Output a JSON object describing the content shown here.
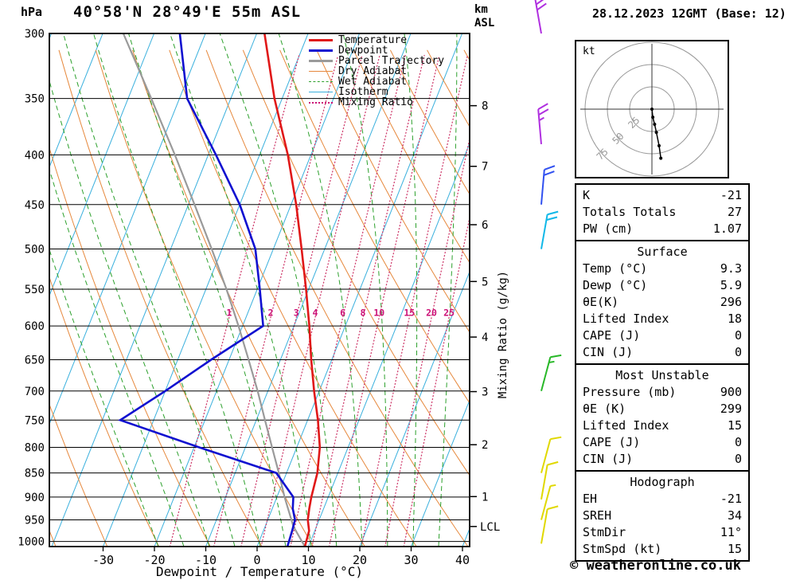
{
  "header": {
    "pressure_unit": "hPa",
    "title": "40°58'N 28°49'E 55m ASL",
    "date": "28.12.2023 12GMT (Base: 12)",
    "altitude_header_line1": "km",
    "altitude_header_line2": "ASL"
  },
  "axes": {
    "pressure_ticks": [
      300,
      350,
      400,
      450,
      500,
      550,
      600,
      650,
      700,
      750,
      800,
      850,
      900,
      950,
      1000
    ],
    "temp_ticks": [
      -30,
      -20,
      -10,
      0,
      10,
      20,
      30,
      40
    ],
    "xlabel": "Dewpoint / Temperature (°C)",
    "right_axis_label": "Mixing Ratio (g/kg)",
    "km_ticks": [
      {
        "km": 1,
        "p": 899
      },
      {
        "km": 2,
        "p": 795
      },
      {
        "km": 3,
        "p": 701
      },
      {
        "km": 4,
        "p": 616
      },
      {
        "km": 5,
        "p": 540
      },
      {
        "km": 6,
        "p": 472
      },
      {
        "km": 7,
        "p": 411
      },
      {
        "km": 8,
        "p": 356
      }
    ],
    "lcl": {
      "label": "LCL",
      "p": 965
    }
  },
  "legend": [
    {
      "label": "Temperature",
      "color": "#e01818",
      "style": "solid",
      "weight": 3
    },
    {
      "label": "Dewpoint",
      "color": "#1010d0",
      "style": "solid",
      "weight": 3
    },
    {
      "label": "Parcel Trajectory",
      "color": "#9a9a9a",
      "style": "solid",
      "weight": 3
    },
    {
      "label": "Dry Adiabat",
      "color": "#e6883c",
      "style": "solid",
      "weight": 1
    },
    {
      "label": "Wet Adiabat",
      "color": "#2ca02c",
      "style": "dashed",
      "weight": 1
    },
    {
      "label": "Isotherm",
      "color": "#3ab0dd",
      "style": "solid",
      "weight": 1
    },
    {
      "label": "Mixing Ratio",
      "color": "#cc1177",
      "style": "dotted",
      "weight": 2
    }
  ],
  "chart_data": {
    "type": "skewt-log-p",
    "pressure_range_hpa": [
      300,
      1012
    ],
    "temperature_axis_c": [
      -40,
      41
    ],
    "isotherms": {
      "min": -100,
      "max": 40,
      "step": 10
    },
    "dry_adiabats_theta_c": {
      "min": -40,
      "max": 160,
      "step": 10
    },
    "wet_adiabats_thetaw_c": {
      "min": -20,
      "max": 35,
      "step": 5
    },
    "mixing_ratio_lines_gkg": [
      1,
      2,
      3,
      4,
      6,
      8,
      10,
      15,
      20,
      25
    ],
    "temperature_profile_c_by_hpa": [
      [
        1012,
        9.3
      ],
      [
        975,
        8.9
      ],
      [
        950,
        7.8
      ],
      [
        925,
        7.2
      ],
      [
        900,
        6.7
      ],
      [
        850,
        6.0
      ],
      [
        800,
        4.5
      ],
      [
        750,
        2.0
      ],
      [
        700,
        -1.0
      ],
      [
        650,
        -4.0
      ],
      [
        600,
        -7.0
      ],
      [
        550,
        -10.5
      ],
      [
        500,
        -14.5
      ],
      [
        450,
        -19.0
      ],
      [
        400,
        -24.5
      ],
      [
        350,
        -31.5
      ],
      [
        300,
        -38.5
      ]
    ],
    "dewpoint_profile_c_by_hpa": [
      [
        1012,
        5.9
      ],
      [
        975,
        5.6
      ],
      [
        950,
        5.3
      ],
      [
        925,
        4.0
      ],
      [
        900,
        3.2
      ],
      [
        850,
        -2.0
      ],
      [
        800,
        -19.0
      ],
      [
        750,
        -36.5
      ],
      [
        700,
        -30.0
      ],
      [
        650,
        -23.5
      ],
      [
        600,
        -16.0
      ],
      [
        550,
        -19.5
      ],
      [
        500,
        -23.5
      ],
      [
        450,
        -30.0
      ],
      [
        400,
        -38.5
      ],
      [
        350,
        -48.5
      ],
      [
        300,
        -55.0
      ]
    ],
    "parcel_profile_c_by_hpa": [
      [
        1012,
        9.3
      ],
      [
        965,
        5.5
      ],
      [
        900,
        1.5
      ],
      [
        850,
        -1.5
      ],
      [
        800,
        -4.8
      ],
      [
        750,
        -8.3
      ],
      [
        700,
        -12.0
      ],
      [
        650,
        -16.2
      ],
      [
        600,
        -20.8
      ],
      [
        550,
        -26.0
      ],
      [
        500,
        -32.0
      ],
      [
        450,
        -38.8
      ],
      [
        400,
        -46.5
      ],
      [
        350,
        -55.5
      ],
      [
        300,
        -66.0
      ]
    ],
    "wind_barbs": [
      {
        "p": 300,
        "speed_kt": 30,
        "dir_deg": 350,
        "color": "#b030e0"
      },
      {
        "p": 390,
        "speed_kt": 25,
        "dir_deg": 355,
        "color": "#b030e0"
      },
      {
        "p": 450,
        "speed_kt": 20,
        "dir_deg": 5,
        "color": "#3050f0"
      },
      {
        "p": 500,
        "speed_kt": 20,
        "dir_deg": 10,
        "color": "#10b8e8"
      },
      {
        "p": 700,
        "speed_kt": 15,
        "dir_deg": 15,
        "color": "#28b828"
      },
      {
        "p": 850,
        "speed_kt": 10,
        "dir_deg": 15,
        "color": "#e0d800"
      },
      {
        "p": 905,
        "speed_kt": 10,
        "dir_deg": 10,
        "color": "#e0d800"
      },
      {
        "p": 950,
        "speed_kt": 5,
        "dir_deg": 15,
        "color": "#e0d800"
      },
      {
        "p": 1005,
        "speed_kt": 10,
        "dir_deg": 10,
        "color": "#e0d800"
      }
    ],
    "colors": {
      "temperature": "#e01818",
      "dewpoint": "#1010d0",
      "parcel": "#9a9a9a",
      "dry_adiabat": "#e6883c",
      "wet_adiabat": "#2ca02c",
      "isotherm": "#3ab0dd",
      "mixing_ratio": "#d04070",
      "mixing_label": "#cc1177",
      "grid": "#000000"
    }
  },
  "hodograph": {
    "unit_label": "kt",
    "rings_kt": [
      25,
      50,
      75
    ],
    "trace_uv_kt": [
      [
        0,
        0
      ],
      [
        1,
        -9
      ],
      [
        3,
        -17
      ],
      [
        5,
        -26
      ],
      [
        8,
        -41
      ],
      [
        10,
        -55
      ]
    ]
  },
  "tables": {
    "indices": {
      "rows": [
        {
          "label": "K",
          "value": "-21"
        },
        {
          "label": "Totals Totals",
          "value": "27"
        },
        {
          "label": "PW (cm)",
          "value": "1.07"
        }
      ]
    },
    "surface": {
      "title": "Surface",
      "rows": [
        {
          "label": "Temp (°C)",
          "value": "9.3"
        },
        {
          "label": "Dewp (°C)",
          "value": "5.9"
        },
        {
          "label": "θE(K)",
          "value": "296"
        },
        {
          "label": "Lifted Index",
          "value": "18"
        },
        {
          "label": "CAPE (J)",
          "value": "0"
        },
        {
          "label": "CIN (J)",
          "value": "0"
        }
      ]
    },
    "most_unstable": {
      "title": "Most Unstable",
      "rows": [
        {
          "label": "Pressure (mb)",
          "value": "900"
        },
        {
          "label": "θE (K)",
          "value": "299"
        },
        {
          "label": "Lifted Index",
          "value": "15"
        },
        {
          "label": "CAPE (J)",
          "value": "0"
        },
        {
          "label": "CIN (J)",
          "value": "0"
        }
      ]
    },
    "hodograph": {
      "title": "Hodograph",
      "rows": [
        {
          "label": "EH",
          "value": "-21"
        },
        {
          "label": "SREH",
          "value": "34"
        },
        {
          "label": "StmDir",
          "value": "11°"
        },
        {
          "label": "StmSpd (kt)",
          "value": "15"
        }
      ]
    }
  },
  "footer": {
    "copyright": "© weatheronline.co.uk"
  }
}
